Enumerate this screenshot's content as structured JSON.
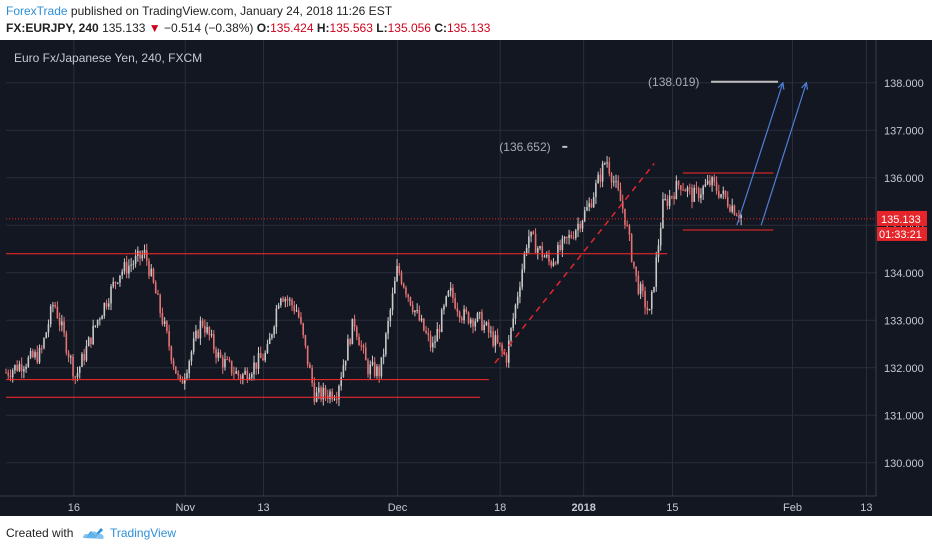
{
  "header": {
    "author": "ForexTrade",
    "published": "published on TradingView.com, January 24, 2018 11:26 EST",
    "symbol": "FX:EURJPY, 240",
    "last": "135.133",
    "arrow": "▼",
    "change": "−0.514 (−0.38%)",
    "o_label": "O:",
    "o_value": "135.424",
    "h_label": "H:",
    "h_value": "135.563",
    "l_label": "L:",
    "l_value": "135.056",
    "c_label": "C:",
    "c_value": "135.133"
  },
  "footer": {
    "created_with": "Created with",
    "brand": "TradingView",
    "logo_icon": "cloud-icon"
  },
  "colors": {
    "background": "#131722",
    "grid": "#2a2e39",
    "up_candle": "#c9c9c9",
    "down_candle": "#e57373",
    "level_line": "#ff2a2a",
    "trend_line": "#e0282e",
    "projection_arrow": "#4f7fd6",
    "price_badge": "#e5252a",
    "axis_text": "#c5c9d1"
  },
  "chart_data": {
    "type": "candlestick",
    "title": "Euro Fx/Japanese Yen, 240, FXCM",
    "ylim": [
      129.3,
      138.9
    ],
    "y_ticks": [
      "130.000",
      "131.000",
      "132.000",
      "133.000",
      "134.000",
      "135.000",
      "136.000",
      "137.000",
      "138.000"
    ],
    "y_tick_values": [
      130,
      131,
      132,
      133,
      134,
      135,
      136,
      137,
      138
    ],
    "x_ticks": [
      "16",
      "Nov",
      "13",
      "Dec",
      "18",
      "2018",
      "15",
      "Feb",
      "13"
    ],
    "x_tick_positions": [
      0.078,
      0.206,
      0.296,
      0.45,
      0.568,
      0.664,
      0.766,
      0.904,
      0.989
    ],
    "current_price": "135.133",
    "countdown": "01:33:21",
    "path_points": [
      [
        0.0,
        131.9
      ],
      [
        0.04,
        132.3
      ],
      [
        0.055,
        133.4
      ],
      [
        0.08,
        131.8
      ],
      [
        0.105,
        133.0
      ],
      [
        0.13,
        134.0
      ],
      [
        0.16,
        134.4
      ],
      [
        0.18,
        133.0
      ],
      [
        0.2,
        131.6
      ],
      [
        0.225,
        133.0
      ],
      [
        0.245,
        132.2
      ],
      [
        0.27,
        131.8
      ],
      [
        0.3,
        132.3
      ],
      [
        0.315,
        133.6
      ],
      [
        0.335,
        133.2
      ],
      [
        0.355,
        131.4
      ],
      [
        0.38,
        131.5
      ],
      [
        0.4,
        133.0
      ],
      [
        0.415,
        132.0
      ],
      [
        0.43,
        131.9
      ],
      [
        0.45,
        134.1
      ],
      [
        0.47,
        133.2
      ],
      [
        0.49,
        132.4
      ],
      [
        0.51,
        133.6
      ],
      [
        0.525,
        133.1
      ],
      [
        0.545,
        133.0
      ],
      [
        0.56,
        132.6
      ],
      [
        0.575,
        132.2
      ],
      [
        0.6,
        134.8
      ],
      [
        0.625,
        134.2
      ],
      [
        0.65,
        134.8
      ],
      [
        0.67,
        135.4
      ],
      [
        0.69,
        136.4
      ],
      [
        0.71,
        135.3
      ],
      [
        0.725,
        133.8
      ],
      [
        0.74,
        133.1
      ],
      [
        0.755,
        135.4
      ],
      [
        0.775,
        135.9
      ],
      [
        0.79,
        135.6
      ],
      [
        0.81,
        135.9
      ],
      [
        0.83,
        135.5
      ],
      [
        0.845,
        135.2
      ]
    ],
    "levels": [
      {
        "price": 134.4,
        "x0": 0.0,
        "x1": 0.76
      },
      {
        "price": 131.75,
        "x0": 0.0,
        "x1": 0.555
      },
      {
        "price": 131.38,
        "x0": 0.0,
        "x1": 0.545
      },
      {
        "price": 136.1,
        "x0": 0.778,
        "x1": 0.882
      },
      {
        "price": 134.9,
        "x0": 0.778,
        "x1": 0.882
      }
    ],
    "trend_line": {
      "from": [
        0.562,
        132.1
      ],
      "to": [
        0.745,
        136.3
      ],
      "style": "dashed"
    },
    "annotations": [
      {
        "text": "(136.652)",
        "x": 0.567,
        "price": 136.65
      },
      {
        "text": "(138.019)",
        "x": 0.738,
        "price": 138.02
      }
    ],
    "projection_arrows": [
      {
        "from": [
          0.84,
          135.0
        ],
        "to": [
          0.893,
          138.0
        ]
      },
      {
        "from": [
          0.868,
          135.0
        ],
        "to": [
          0.92,
          138.0
        ]
      }
    ]
  }
}
